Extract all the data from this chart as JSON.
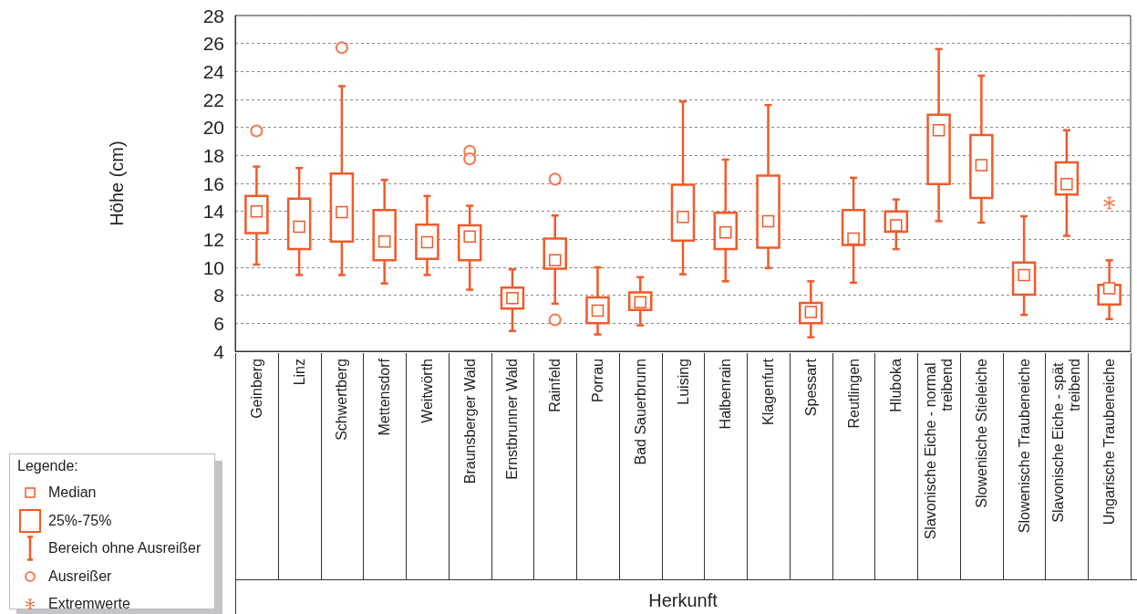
{
  "chart_data": {
    "type": "box",
    "xlabel": "Herkunft",
    "ylabel": "Höhe (cm)",
    "legend_title": "Legende:",
    "legend": "bottom left",
    "grid": "y",
    "annotations": [
      "Median",
      "25%-75%",
      "Bereich ohne Ausreißer",
      "Ausreißer"
    ],
    "ylim": [
      4,
      28
    ],
    "yticks": [
      4,
      6,
      8,
      10,
      12,
      14,
      16,
      18,
      20,
      22,
      24,
      26,
      28
    ],
    "categories": [
      "Geinberg",
      "Linz",
      "Schwertberg",
      "Mettensdorf",
      "Weitwörth",
      "Braunsberger Wald",
      "Ernstbrunner Wald",
      "Rainfeld",
      "Porrau",
      "Bad Sauerbrunn",
      "Luising",
      "Halbenrain",
      "Klagenfurt",
      "Spessart",
      "Reutlingen",
      "Hluboka",
      "Slavonische Eiche - normal treibend",
      "Slowenische Stieleiche",
      "Slowenische Traubeneiche",
      "Slavonische Eiche - spät treibend",
      "Ungarische Traubeneiche"
    ],
    "series": [
      {
        "type": "box",
        "color": "#f15a29",
        "boxes": [
          {
            "low": 10.2,
            "q1": 12.45,
            "median": 14.0,
            "q3": 15.1,
            "high": 17.2,
            "outliers": [
              19.75
            ]
          },
          {
            "low": 9.45,
            "q1": 11.3,
            "median": 12.9,
            "q3": 14.9,
            "high": 17.1
          },
          {
            "low": 9.45,
            "q1": 11.85,
            "median": 13.95,
            "q3": 16.7,
            "high": 22.95,
            "outliers": [
              25.7
            ]
          },
          {
            "low": 8.85,
            "q1": 10.5,
            "median": 11.85,
            "q3": 14.1,
            "high": 16.25
          },
          {
            "low": 9.45,
            "q1": 10.6,
            "median": 11.8,
            "q3": 13.05,
            "high": 15.1
          },
          {
            "low": 8.4,
            "q1": 10.5,
            "median": 12.2,
            "q3": 13.0,
            "high": 14.4,
            "outliers": [
              18.3,
              17.75
            ]
          },
          {
            "low": 5.45,
            "q1": 7.05,
            "median": 7.8,
            "q3": 8.55,
            "high": 9.85
          },
          {
            "low": 7.4,
            "q1": 9.9,
            "median": 10.5,
            "q3": 12.05,
            "high": 13.7,
            "outliers": [
              16.3,
              6.25
            ]
          },
          {
            "low": 5.2,
            "q1": 6.0,
            "median": 6.9,
            "q3": 7.85,
            "high": 10.0
          },
          {
            "low": 5.85,
            "q1": 6.95,
            "median": 7.5,
            "q3": 8.2,
            "high": 9.3
          },
          {
            "low": 9.5,
            "q1": 11.9,
            "median": 13.6,
            "q3": 15.9,
            "high": 21.85
          },
          {
            "low": 9.0,
            "q1": 11.3,
            "median": 12.5,
            "q3": 13.9,
            "high": 17.7
          },
          {
            "low": 9.95,
            "q1": 11.4,
            "median": 13.3,
            "q3": 16.55,
            "high": 21.6
          },
          {
            "low": 5.0,
            "q1": 6.0,
            "median": 6.8,
            "q3": 7.45,
            "high": 9.0
          },
          {
            "low": 8.9,
            "q1": 11.6,
            "median": 12.05,
            "q3": 14.1,
            "high": 16.4
          },
          {
            "low": 11.3,
            "q1": 12.55,
            "median": 13.0,
            "q3": 14.0,
            "high": 14.85
          },
          {
            "low": 13.3,
            "q1": 15.95,
            "median": 19.8,
            "q3": 20.9,
            "high": 25.6
          },
          {
            "low": 13.2,
            "q1": 14.95,
            "median": 17.3,
            "q3": 19.45,
            "high": 23.7
          },
          {
            "low": 6.6,
            "q1": 8.05,
            "median": 9.45,
            "q3": 10.35,
            "high": 13.65
          },
          {
            "low": 12.25,
            "q1": 15.2,
            "median": 15.95,
            "q3": 17.5,
            "high": 19.8
          },
          {
            "low": 6.3,
            "q1": 7.35,
            "median": 8.5,
            "q3": 8.75,
            "high": 10.5
          }
        ]
      },
      {
        "type": "scatter",
        "name": "Extremwerte",
        "color": "#f15a29",
        "marker": "cross",
        "x": [
          "Ungarische Traubeneiche"
        ],
        "values": [
          14.6
        ]
      }
    ]
  }
}
